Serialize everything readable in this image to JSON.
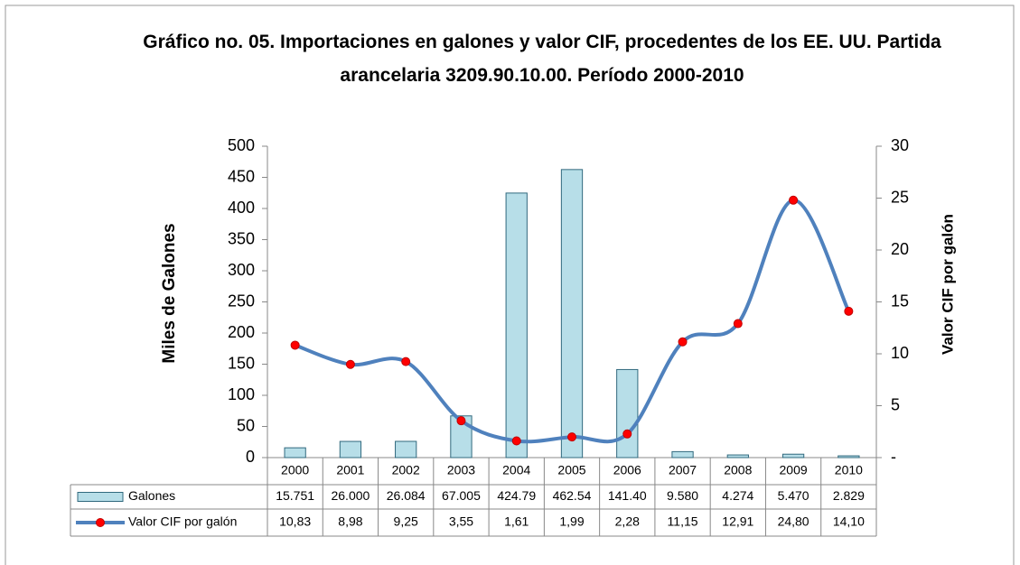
{
  "chart_data": {
    "type": "bar",
    "title": "Gráfico no. 05. Importaciones en galones y valor CIF, procedentes de los EE. UU. Partida arancelaria 3209.90.10.00. Período 2000-2010",
    "ylabel": "Miles de Galones",
    "y2label": "Valor CIF por galón",
    "categories": [
      "2000",
      "2001",
      "2002",
      "2003",
      "2004",
      "2005",
      "2006",
      "2007",
      "2008",
      "2009",
      "2010"
    ],
    "series": [
      {
        "name": "Galones",
        "color": "#b7dee8",
        "type": "bar",
        "values": [
          15.751,
          26.0,
          26.084,
          67.005,
          424.79,
          462.54,
          141.4,
          9.58,
          4.274,
          5.47,
          2.829
        ],
        "value_labels": [
          "15.751",
          "26.000",
          "26.084",
          "67.005",
          "424.79",
          "462.54",
          "141.40",
          "9.580",
          "4.274",
          "5.470",
          "2.829"
        ]
      },
      {
        "name": "Valor CIF por galón",
        "color": "#4f81bd",
        "marker_color": "#ff0000",
        "type": "line",
        "axis": "y2",
        "values": [
          10.83,
          8.98,
          9.25,
          3.55,
          1.61,
          1.99,
          2.28,
          11.15,
          12.91,
          24.8,
          14.1
        ],
        "value_labels": [
          "10,83",
          "8,98",
          "9,25",
          "3,55",
          "1,61",
          "1,99",
          "2,28",
          "11,15",
          "12,91",
          "24,80",
          "14,10"
        ]
      }
    ],
    "ylim": [
      0,
      500
    ],
    "yticks": [
      0,
      50,
      100,
      150,
      200,
      250,
      300,
      350,
      400,
      450,
      500
    ],
    "y2lim": [
      0,
      30
    ],
    "y2ticks": [
      {
        "value": 0,
        "label": "-"
      },
      5,
      10,
      15,
      20,
      25,
      30
    ]
  }
}
